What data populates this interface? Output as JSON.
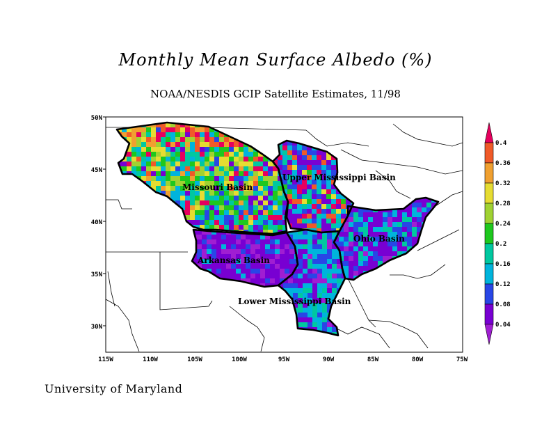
{
  "title": "Monthly Mean Surface Albedo (%)",
  "subtitle": "NOAA/NESDIS GCIP Satellite Estimates, 11/98",
  "footer": "University of Maryland",
  "map": {
    "lat_ticks": [
      "50N",
      "45N",
      "40N",
      "35N",
      "30N"
    ],
    "lon_ticks": [
      "115W",
      "110W",
      "105W",
      "100W",
      "95W",
      "90W",
      "85W",
      "80W",
      "75W"
    ],
    "basins": [
      {
        "key": "missouri",
        "label": "Missouri Basin"
      },
      {
        "key": "upper",
        "label": "Upper Mississippi Basin"
      },
      {
        "key": "ohio",
        "label": "Ohio Basin"
      },
      {
        "key": "arkansas",
        "label": "Arkansas Basin"
      },
      {
        "key": "lower",
        "label": "Lower Mississippi Basin"
      }
    ]
  },
  "colorbar": {
    "labels": [
      "0.4",
      "0.36",
      "0.32",
      "0.28",
      "0.24",
      "0.2",
      "0.16",
      "0.12",
      "0.08",
      "0.04"
    ],
    "colors": [
      "#e6005e",
      "#f05a28",
      "#f0a030",
      "#e6dc32",
      "#a0d232",
      "#1ec81e",
      "#00c8a0",
      "#00b4dc",
      "#2846e6",
      "#7800d2",
      "#a01ed2"
    ]
  }
}
